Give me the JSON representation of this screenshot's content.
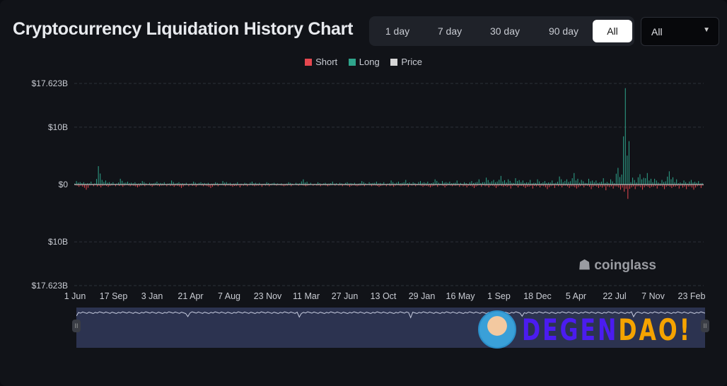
{
  "header": {
    "title": "Cryptocurrency Liquidation History Chart",
    "tabs": [
      "1 day",
      "7 day",
      "30 day",
      "90 day",
      "All"
    ],
    "active_tab": "All",
    "select_value": "All"
  },
  "colors": {
    "short": "#e5474f",
    "long": "#2fa58c",
    "price": "#d6d6d6",
    "navigator": "#2c3350"
  },
  "watermark": "coinglass",
  "overlay_logo": {
    "part1": "DEGEN",
    "part2": "DAO!"
  },
  "chart_data": {
    "type": "bar",
    "legend": [
      "Short",
      "Long",
      "Price"
    ],
    "legend_position": "top",
    "y_ticks": [
      "$17.623B",
      "$10B",
      "$0",
      "$10B",
      "$17.623B"
    ],
    "ylim": [
      -17.623,
      17.623
    ],
    "x_ticks": [
      "1 Jun",
      "17 Sep",
      "3 Jan",
      "21 Apr",
      "7 Aug",
      "23 Nov",
      "11 Mar",
      "27 Jun",
      "13 Oct",
      "29 Jan",
      "16 May",
      "1 Sep",
      "18 Dec",
      "5 Apr",
      "22 Jul",
      "7 Nov",
      "23 Feb"
    ],
    "grid": true,
    "series": [
      {
        "name": "Long",
        "values": [
          0.6,
          0.4,
          0.5,
          3.2,
          0.7,
          0.4,
          1.0,
          0.5,
          0.4,
          0.6,
          0.3,
          0.5,
          0.4,
          0.7,
          0.4,
          0.3,
          0.5,
          0.4,
          0.3,
          0.4,
          0.6,
          0.3,
          0.4,
          0.3,
          0.5,
          0.3,
          0.4,
          0.3,
          0.2,
          0.4,
          0.3,
          0.9,
          0.3,
          0.4,
          0.3,
          0.5,
          0.3,
          0.4,
          0.3,
          0.6,
          0.4,
          0.5,
          0.4,
          0.7,
          0.5,
          0.8,
          0.4,
          0.6,
          0.5,
          0.9,
          0.6,
          0.5,
          0.7,
          0.4,
          0.6,
          0.9,
          1.2,
          0.8,
          1.5,
          0.9,
          1.1,
          0.7,
          0.8,
          0.9,
          0.6,
          0.7,
          1.4,
          0.9,
          2.0,
          0.8,
          1.0,
          0.7,
          1.1,
          0.9,
          2.9,
          16.8,
          1.2,
          1.8,
          2.0,
          1.0,
          0.8,
          2.3,
          0.9,
          0.7,
          0.8,
          0.6
        ]
      },
      {
        "name": "Short",
        "values": [
          0.4,
          0.9,
          0.3,
          0.5,
          0.4,
          0.3,
          0.4,
          0.3,
          0.5,
          0.3,
          0.4,
          0.3,
          0.3,
          0.4,
          0.6,
          0.3,
          0.4,
          0.3,
          0.6,
          0.3,
          0.3,
          0.4,
          0.5,
          0.3,
          0.3,
          0.4,
          0.3,
          0.2,
          0.3,
          0.3,
          0.2,
          0.3,
          0.2,
          0.3,
          0.3,
          0.2,
          0.3,
          0.4,
          0.3,
          0.3,
          0.3,
          0.4,
          0.3,
          0.4,
          0.3,
          0.4,
          0.3,
          0.4,
          0.5,
          0.4,
          0.5,
          0.3,
          0.4,
          0.5,
          0.6,
          0.4,
          0.5,
          0.6,
          0.4,
          0.7,
          0.5,
          0.6,
          0.7,
          0.5,
          0.8,
          0.6,
          0.5,
          0.6,
          0.7,
          0.5,
          0.8,
          0.6,
          1.0,
          0.7,
          0.9,
          2.5,
          0.8,
          0.9,
          0.6,
          0.7,
          0.8,
          0.6,
          0.7,
          0.8,
          0.9,
          0.6
        ]
      }
    ]
  }
}
